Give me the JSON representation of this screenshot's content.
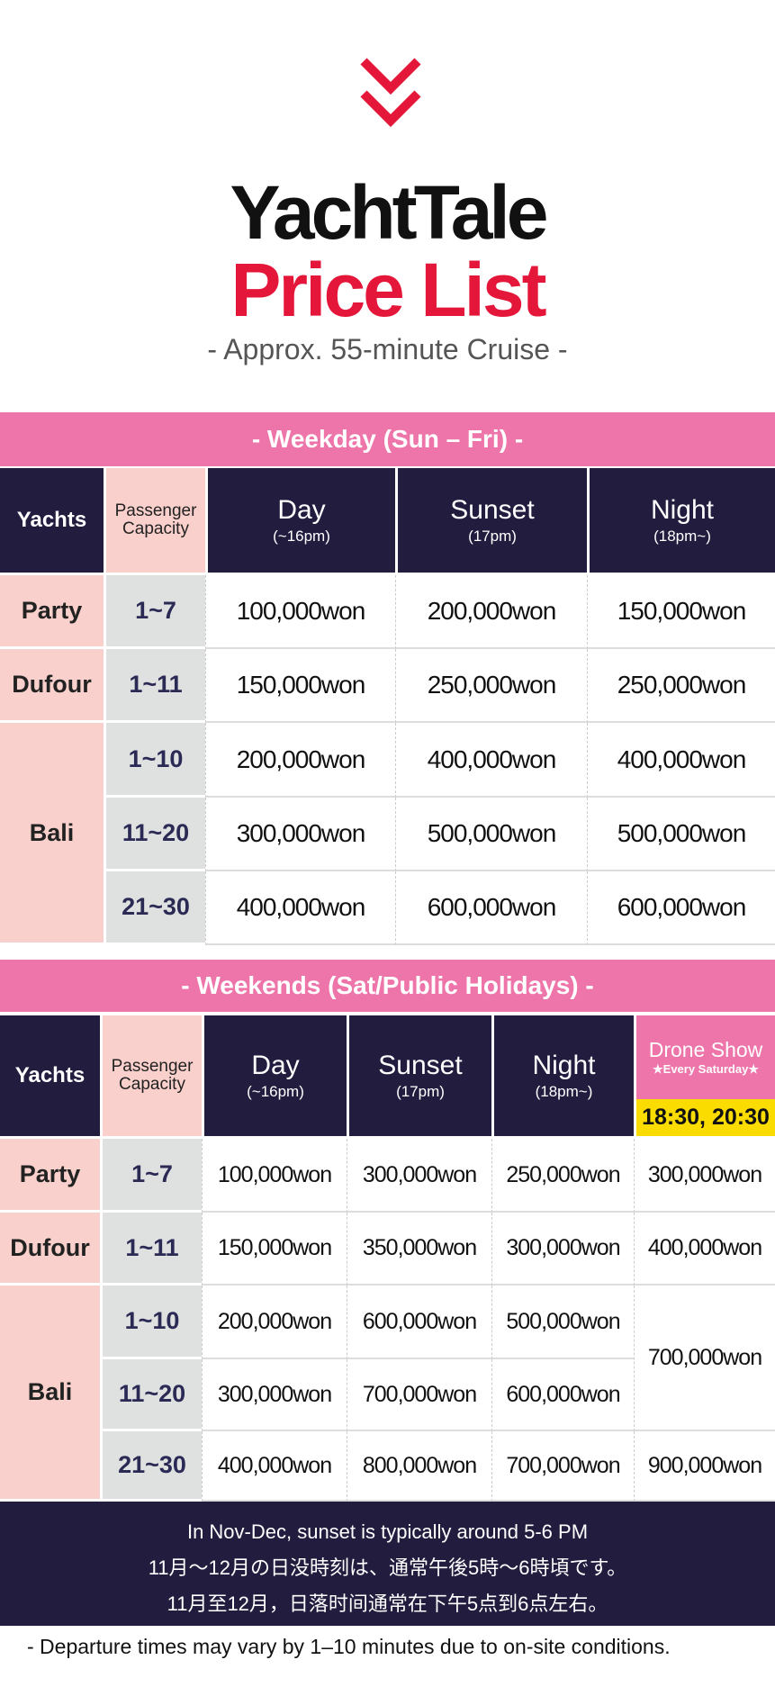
{
  "header": {
    "icon": "double-chevron-down-icon",
    "brand": "YachtTale",
    "title": "Price List",
    "subtitle": "- Approx. 55-minute Cruise -"
  },
  "colors": {
    "navy": "#221c3f",
    "pink": "#ee75a9",
    "red": "#e4173a",
    "yellow": "#fbdc00",
    "light_pink": "#f9d0cb",
    "gray": "#dfe0e0"
  },
  "weekday": {
    "banner": "- Weekday (Sun – Fri) -",
    "headers": {
      "yachts": "Yachts",
      "capacity": "Passenger Capacity",
      "cols": [
        {
          "label": "Day",
          "sub": "(~16pm)"
        },
        {
          "label": "Sunset",
          "sub": "(17pm)"
        },
        {
          "label": "Night",
          "sub": "(18pm~)"
        }
      ]
    },
    "rows": [
      {
        "yacht": "Party",
        "capacity": "1~7",
        "prices": [
          "100,000won",
          "200,000won",
          "150,000won"
        ]
      },
      {
        "yacht": "Dufour",
        "capacity": "1~11",
        "prices": [
          "150,000won",
          "250,000won",
          "250,000won"
        ]
      },
      {
        "yacht": "Bali",
        "capacity": "1~10",
        "prices": [
          "200,000won",
          "400,000won",
          "400,000won"
        ]
      },
      {
        "yacht": "Bali",
        "capacity": "11~20",
        "prices": [
          "300,000won",
          "500,000won",
          "500,000won"
        ]
      },
      {
        "yacht": "Bali",
        "capacity": "21~30",
        "prices": [
          "400,000won",
          "600,000won",
          "600,000won"
        ]
      }
    ]
  },
  "weekend": {
    "banner": "- Weekends (Sat/Public Holidays) -",
    "headers": {
      "yachts": "Yachts",
      "capacity": "Passenger Capacity",
      "cols": [
        {
          "label": "Day",
          "sub": "(~16pm)"
        },
        {
          "label": "Sunset",
          "sub": "(17pm)"
        },
        {
          "label": "Night",
          "sub": "(18pm~)"
        }
      ],
      "drone": {
        "label": "Drone Show",
        "sub": "★Every Saturday★",
        "times": "18:30, 20:30"
      }
    },
    "rows": [
      {
        "yacht": "Party",
        "capacity": "1~7",
        "prices": [
          "100,000won",
          "300,000won",
          "250,000won"
        ],
        "drone": "300,000won"
      },
      {
        "yacht": "Dufour",
        "capacity": "1~11",
        "prices": [
          "150,000won",
          "350,000won",
          "300,000won"
        ],
        "drone": "400,000won"
      },
      {
        "yacht": "Bali",
        "capacity": "1~10",
        "prices": [
          "200,000won",
          "600,000won",
          "500,000won"
        ],
        "drone": "700,000won"
      },
      {
        "yacht": "Bali",
        "capacity": "11~20",
        "prices": [
          "300,000won",
          "700,000won",
          "600,000won"
        ],
        "drone": "700,000won"
      },
      {
        "yacht": "Bali",
        "capacity": "21~30",
        "prices": [
          "400,000won",
          "800,000won",
          "700,000won"
        ],
        "drone": "900,000won"
      }
    ]
  },
  "note": [
    "In Nov-Dec, sunset is typically around 5-6 PM",
    "11月～12月の日没時刻は、通常午後5時～6時頃です。",
    "11月至12月，日落时间通常在下午5点到6点左右。"
  ],
  "footer": "- Departure times may vary by 1–10 minutes due to on-site conditions."
}
